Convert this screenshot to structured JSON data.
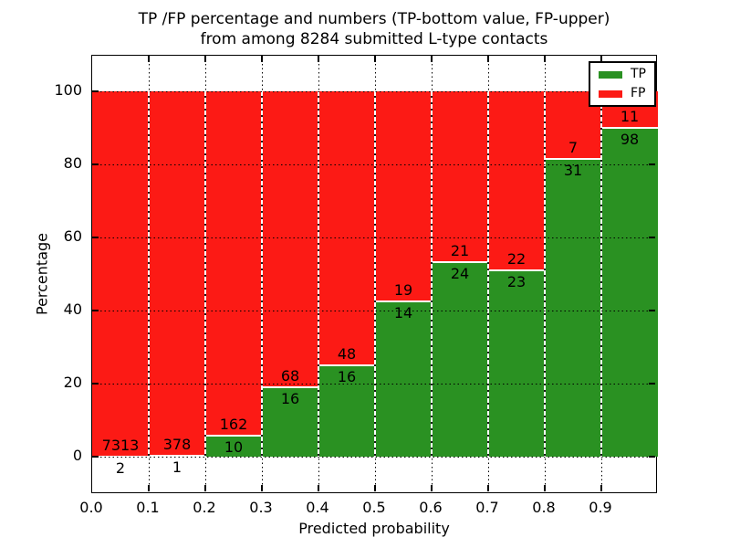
{
  "title": {
    "line1": "TP /FP percentage and numbers (TP-bottom value, FP-upper)",
    "line2": "from among 8284 submitted L-type contacts"
  },
  "axes": {
    "xlabel": "Predicted probability",
    "ylabel": "Percentage",
    "x_tick_labels": [
      "0.0",
      "0.1",
      "0.2",
      "0.3",
      "0.4",
      "0.5",
      "0.6",
      "0.7",
      "0.8",
      "0.9"
    ],
    "y_tick_labels": [
      "0",
      "20",
      "40",
      "60",
      "80",
      "100"
    ],
    "y_tick_values": [
      0,
      20,
      40,
      60,
      80,
      100
    ]
  },
  "legend": {
    "position": "upper right",
    "items": [
      {
        "label": "TP",
        "color": "#2a9122"
      },
      {
        "label": "FP",
        "color": "#fc1a15"
      }
    ]
  },
  "chart_data": {
    "type": "bar",
    "stacked": true,
    "normalized": "percent-of-bin",
    "title": "TP /FP percentage and numbers (TP-bottom value, FP-upper) from among 8284 submitted L-type contacts",
    "xlabel": "Predicted probability",
    "ylabel": "Percentage",
    "total_submitted": 8284,
    "bin_starts": [
      0.0,
      0.1,
      0.2,
      0.3,
      0.4,
      0.5,
      0.6,
      0.7,
      0.8,
      0.9
    ],
    "bin_width": 0.1,
    "series": [
      {
        "name": "TP",
        "color": "#2a9122",
        "counts": [
          2,
          1,
          10,
          16,
          16,
          14,
          24,
          23,
          31,
          98
        ]
      },
      {
        "name": "FP",
        "color": "#fc1a15",
        "counts": [
          7313,
          378,
          162,
          68,
          48,
          19,
          21,
          22,
          7,
          11
        ]
      }
    ],
    "tp_percent": [
      0.03,
      0.26,
      5.81,
      19.05,
      25.0,
      42.42,
      53.33,
      51.11,
      81.58,
      89.91
    ],
    "ylim": [
      0,
      100
    ],
    "grid": true,
    "grid_style": "dotted",
    "legend_position": "upper right"
  },
  "colors": {
    "tp": "#2a9122",
    "fp": "#fc1a15",
    "text": "#000000",
    "background": "#ffffff",
    "grid": "#000000",
    "bar_edge": "#ffffff"
  }
}
